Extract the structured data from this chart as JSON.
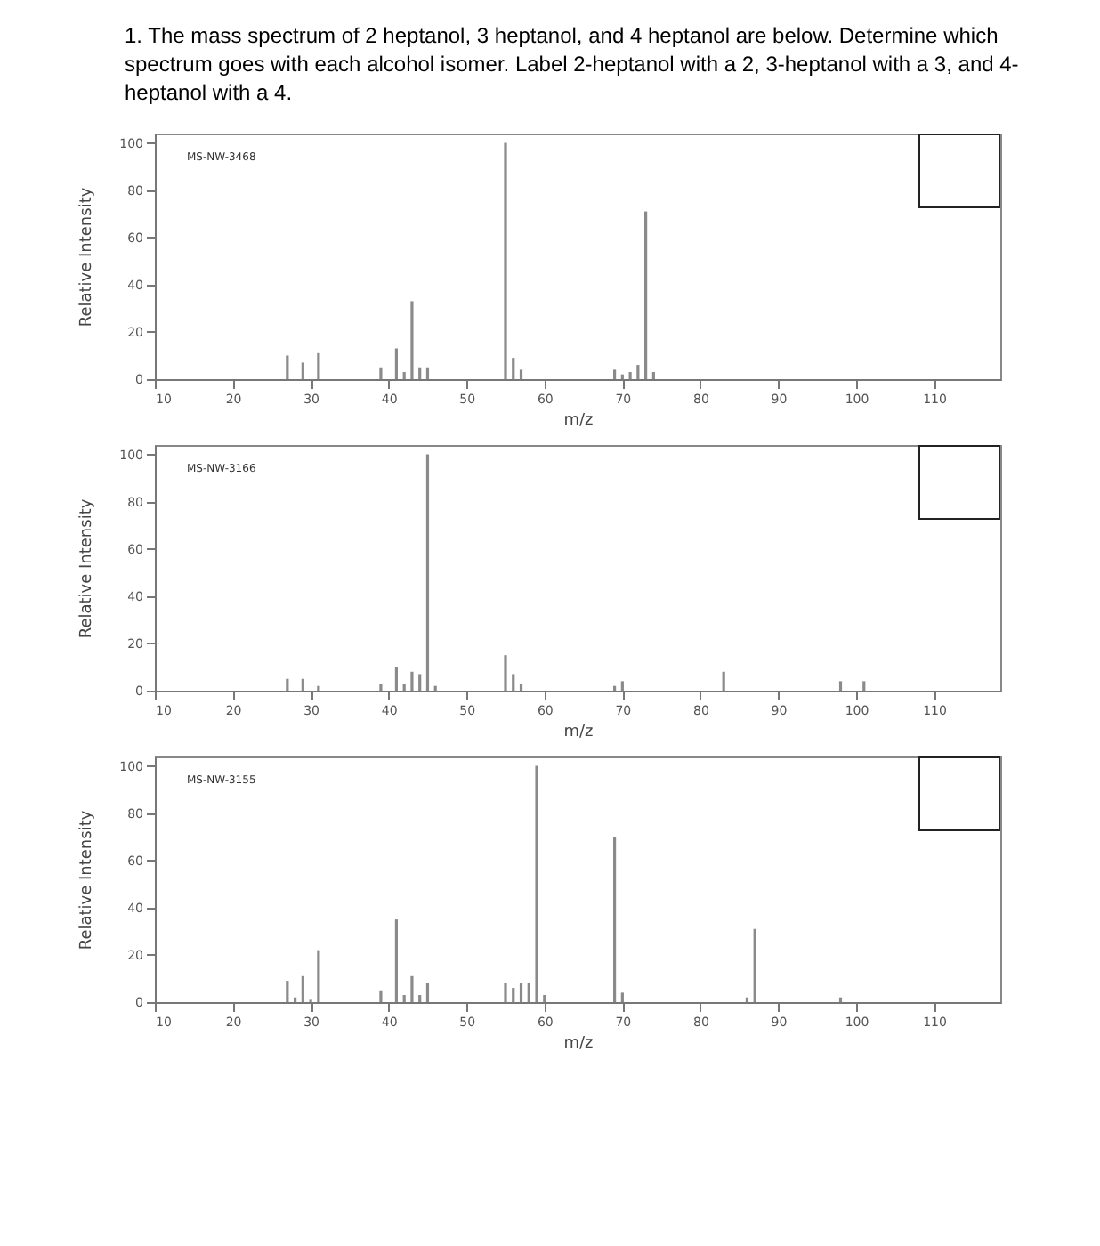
{
  "chart_data": [
    {
      "type": "bar",
      "title": "1. The mass spectrum of 2 heptanol, 3 heptanol, and 4 heptanol are below. Determine which spectrum goes with each alcohol isomer. Label 2-heptanol with a 2, 3-heptanol with a 3, and 4-heptanol with a 4.",
      "xlabel": "m/z",
      "ylabel": "Relative Intensity",
      "annotations": [
        "MS-NW-3468"
      ],
      "color": "#8a8a8a",
      "x": [
        27,
        29,
        31,
        39,
        41,
        42,
        43,
        44,
        45,
        55,
        56,
        57,
        69,
        70,
        71,
        72,
        73,
        74
      ],
      "values": [
        10,
        7,
        11,
        5,
        13,
        3,
        33,
        5,
        5,
        100,
        9,
        4,
        4,
        2,
        3,
        6,
        71,
        3
      ],
      "xlim": [
        10,
        118.5
      ],
      "ylim": [
        0,
        104
      ],
      "xticks": [
        10,
        20,
        30,
        40,
        50,
        60,
        70,
        80,
        90,
        100,
        110
      ],
      "yticks": [
        0,
        20,
        40,
        60,
        80,
        100
      ]
    },
    {
      "type": "bar",
      "xlabel": "m/z",
      "ylabel": "Relative Intensity",
      "annotations": [
        "MS-NW-3166"
      ],
      "color": "#8a8a8a",
      "x": [
        27,
        29,
        31,
        39,
        41,
        42,
        43,
        44,
        45,
        46,
        55,
        56,
        57,
        69,
        70,
        83,
        98,
        101
      ],
      "values": [
        5,
        5,
        2,
        3,
        10,
        3,
        8,
        7,
        100,
        2,
        15,
        7,
        3,
        2,
        4,
        8,
        4,
        4
      ],
      "xlim": [
        10,
        118.5
      ],
      "ylim": [
        0,
        104
      ],
      "xticks": [
        10,
        20,
        30,
        40,
        50,
        60,
        70,
        80,
        90,
        100,
        110
      ],
      "yticks": [
        0,
        20,
        40,
        60,
        80,
        100
      ]
    },
    {
      "type": "bar",
      "xlabel": "m/z",
      "ylabel": "Relative Intensity",
      "annotations": [
        "MS-NW-3155"
      ],
      "color": "#8a8a8a",
      "x": [
        27,
        28,
        29,
        30,
        31,
        39,
        41,
        42,
        43,
        44,
        45,
        55,
        56,
        57,
        58,
        59,
        60,
        69,
        70,
        86,
        87,
        98
      ],
      "values": [
        9,
        2,
        11,
        1,
        22,
        5,
        35,
        3,
        11,
        3,
        8,
        8,
        6,
        8,
        8,
        100,
        3,
        70,
        4,
        2,
        31,
        2
      ],
      "xlim": [
        10,
        118.5
      ],
      "ylim": [
        0,
        104
      ],
      "xticks": [
        10,
        20,
        30,
        40,
        50,
        60,
        70,
        80,
        90,
        100,
        110
      ],
      "yticks": [
        0,
        20,
        40,
        60,
        80,
        100
      ]
    }
  ]
}
